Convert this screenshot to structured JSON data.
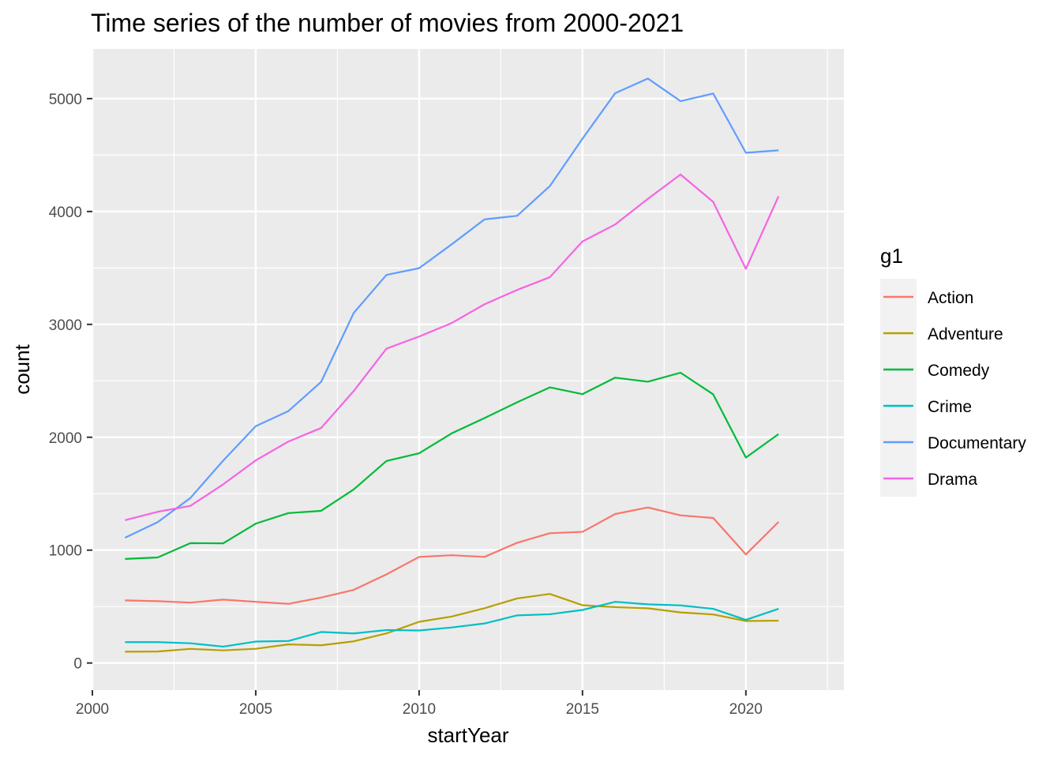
{
  "chart_data": {
    "type": "line",
    "title": "Time series of the number of movies from 2000-2021",
    "xlabel": "startYear",
    "ylabel": "count",
    "xlim": [
      2000,
      2023
    ],
    "ylim": [
      -240,
      5440
    ],
    "x_ticks": [
      2000,
      2005,
      2010,
      2015,
      2020
    ],
    "y_ticks": [
      0,
      1000,
      2000,
      3000,
      4000,
      5000
    ],
    "grid": true,
    "legend_title": "g1",
    "legend_position": "right",
    "x": [
      2001,
      2002,
      2003,
      2004,
      2005,
      2006,
      2007,
      2008,
      2009,
      2010,
      2011,
      2012,
      2013,
      2014,
      2015,
      2016,
      2017,
      2018,
      2019,
      2020,
      2021
    ],
    "series": [
      {
        "name": "Action",
        "color": "#F8766D",
        "values": [
          555,
          548,
          535,
          562,
          542,
          524,
          580,
          648,
          785,
          940,
          955,
          940,
          1065,
          1150,
          1162,
          1320,
          1378,
          1308,
          1285,
          962,
          1250
        ]
      },
      {
        "name": "Adventure",
        "color": "#B79F00",
        "values": [
          100,
          102,
          125,
          112,
          126,
          165,
          157,
          192,
          262,
          365,
          412,
          485,
          572,
          612,
          512,
          495,
          485,
          448,
          430,
          372,
          375
        ]
      },
      {
        "name": "Comedy",
        "color": "#00BA38",
        "values": [
          922,
          935,
          1062,
          1060,
          1235,
          1328,
          1348,
          1538,
          1790,
          1858,
          2035,
          2170,
          2310,
          2442,
          2382,
          2528,
          2492,
          2572,
          2380,
          1820,
          2028
        ]
      },
      {
        "name": "Crime",
        "color": "#00BFC4",
        "values": [
          185,
          185,
          175,
          145,
          190,
          195,
          275,
          262,
          292,
          288,
          315,
          350,
          422,
          432,
          470,
          542,
          520,
          510,
          480,
          382,
          480
        ]
      },
      {
        "name": "Documentary",
        "color": "#619CFF",
        "values": [
          1110,
          1248,
          1462,
          1792,
          2098,
          2232,
          2490,
          3102,
          3438,
          3498,
          3710,
          3930,
          3962,
          4225,
          4645,
          5048,
          5178,
          4978,
          5045,
          4520,
          4542
        ]
      },
      {
        "name": "Drama",
        "color": "#F564E3",
        "values": [
          1265,
          1340,
          1392,
          1582,
          1795,
          1962,
          2082,
          2410,
          2785,
          2892,
          3012,
          3178,
          3305,
          3418,
          3735,
          3885,
          4112,
          4328,
          4085,
          3492,
          4135
        ]
      }
    ]
  }
}
